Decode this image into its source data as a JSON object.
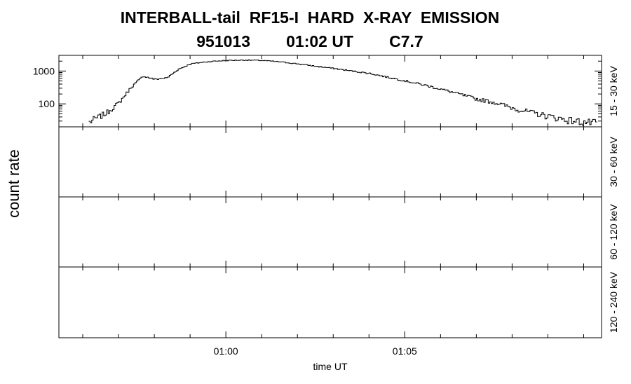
{
  "title": {
    "line1": "INTERBALL-tail  RF15-I  HARD  X-RAY  EMISSION",
    "date": "951013",
    "time": "01:02 UT",
    "class": "C7.7"
  },
  "chart_data": {
    "type": "line",
    "title": "INTERBALL-tail  RF15-I  HARD  X-RAY  EMISSION",
    "subtitle": "951013   01:02 UT   C7.7",
    "xlabel": "time UT",
    "ylabel": "count rate",
    "x_unit": "minutes UT (00:55 to 01:10)",
    "xlim": [
      "00:55:20",
      "01:10:30"
    ],
    "x_ticks": [
      "01:00",
      "01:05"
    ],
    "panels": [
      {
        "name": "15 - 30 keV",
        "y_scale": "log",
        "ylim": [
          20,
          3000
        ],
        "y_ticks": [
          "100",
          "1000"
        ],
        "series": {
          "x": [
            "00:56:10",
            "00:56:40",
            "00:57:00",
            "00:57:20",
            "00:57:40",
            "00:58:00",
            "00:58:20",
            "00:58:40",
            "00:59:00",
            "00:59:20",
            "00:59:40",
            "01:00:00",
            "01:00:30",
            "01:01:00",
            "01:01:30",
            "01:02:00",
            "01:02:30",
            "01:03:00",
            "01:03:30",
            "01:04:00",
            "01:04:30",
            "01:05:00",
            "01:05:30",
            "01:06:00",
            "01:06:30",
            "01:07:00",
            "01:07:30",
            "01:08:00",
            "01:08:30",
            "01:09:00",
            "01:09:30",
            "01:10:00",
            "01:10:20"
          ],
          "values": [
            28,
            55,
            110,
            320,
            700,
            560,
            620,
            1150,
            1650,
            1850,
            2000,
            2100,
            2150,
            2100,
            1900,
            1650,
            1400,
            1200,
            1000,
            850,
            650,
            500,
            380,
            280,
            200,
            140,
            110,
            75,
            55,
            42,
            33,
            28,
            26
          ]
        }
      },
      {
        "name": "30 - 60 keV",
        "y_scale": "linear",
        "series": {
          "x": [],
          "values": []
        }
      },
      {
        "name": "60 - 120 keV",
        "y_scale": "linear",
        "series": {
          "x": [],
          "values": []
        }
      },
      {
        "name": "120 - 240 keV",
        "y_scale": "linear",
        "series": {
          "x": [],
          "values": []
        }
      }
    ]
  }
}
